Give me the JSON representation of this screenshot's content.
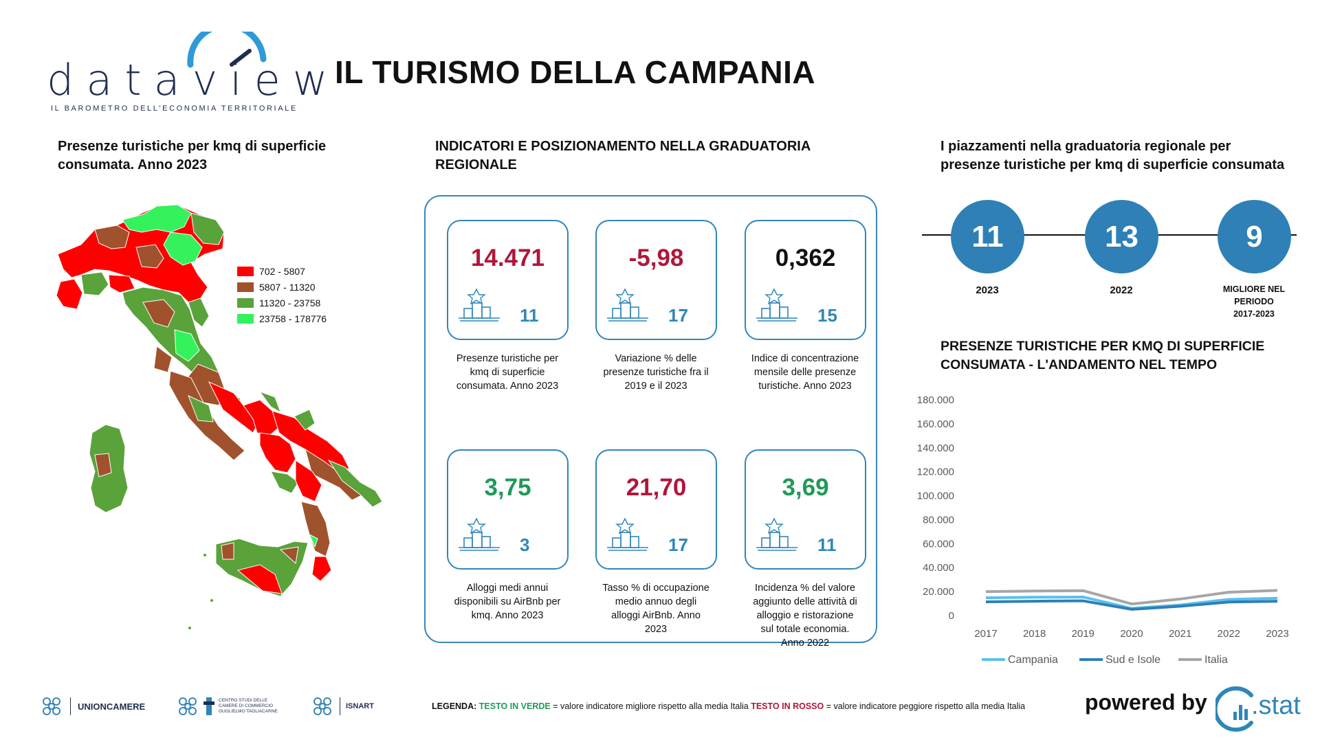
{
  "header": {
    "logo_word": "dataview",
    "logo_tagline": "IL BAROMETRO DELL'ECONOMIA TERRITORIALE",
    "title": "IL TURISMO DELLA CAMPANIA"
  },
  "map_section": {
    "title_line1": "Presenze turistiche per kmq di superficie",
    "title_line2": "consumata. Anno 2023",
    "legend": [
      {
        "label": "702 - 5807",
        "color": "#ff0000"
      },
      {
        "label": "5807 - 11320",
        "color": "#a0522d"
      },
      {
        "label": "11320 - 23758",
        "color": "#5aa23a"
      },
      {
        "label": "23758 - 178776",
        "color": "#33f25c"
      }
    ]
  },
  "indicators": {
    "title_line1": "INDICATORI E POSIZIONAMENTO NELLA GRADUATORIA",
    "title_line2": "REGIONALE",
    "cards": [
      {
        "value": "14.471",
        "rank": "11",
        "tone": "red",
        "desc": [
          "Presenze turistiche per",
          "kmq di superficie",
          "consumata. Anno 2023"
        ]
      },
      {
        "value": "-5,98",
        "rank": "17",
        "tone": "red",
        "desc": [
          "Variazione % delle",
          "presenze turistiche fra il",
          "2019 e il 2023"
        ]
      },
      {
        "value": "0,362",
        "rank": "15",
        "tone": "black",
        "desc": [
          "Indice di concentrazione",
          "mensile delle presenze",
          "turistiche. Anno 2023"
        ]
      },
      {
        "value": "3,75",
        "rank": "3",
        "tone": "green",
        "desc": [
          "Alloggi medi annui",
          "disponibili su AirBnb per",
          "kmq. Anno 2023"
        ]
      },
      {
        "value": "21,70",
        "rank": "17",
        "tone": "red",
        "desc": [
          "Tasso % di occupazione",
          "medio annuo degli",
          "alloggi AirBnb. Anno",
          "2023"
        ]
      },
      {
        "value": "3,69",
        "rank": "11",
        "tone": "green",
        "desc": [
          "Incidenza % del valore",
          "aggiunto delle attività di",
          "alloggio e ristorazione",
          "sul totale economia.",
          "Anno 2022"
        ]
      }
    ]
  },
  "ranking": {
    "title_line1": "I piazzamenti nella graduatoria regionale per",
    "title_line2": "presenze turistiche per kmq di superficie consumata",
    "items": [
      {
        "value": "11",
        "label": "2023"
      },
      {
        "value": "13",
        "label": "2022"
      },
      {
        "value": "9",
        "label_lines": [
          "MIGLIORE NEL",
          "PERIODO",
          "2017-2023"
        ]
      }
    ]
  },
  "trend": {
    "title_line1": "PRESENZE TURISTICHE PER KMQ DI SUPERFICIE",
    "title_line2": "CONSUMATA - L'ANDAMENTO NEL TEMPO"
  },
  "chart_data": {
    "type": "line",
    "x": [
      "2017",
      "2018",
      "2019",
      "2020",
      "2021",
      "2022",
      "2023"
    ],
    "ylim": [
      0,
      180000
    ],
    "yticks": [
      "0",
      "20.000",
      "40.000",
      "60.000",
      "80.000",
      "100.000",
      "120.000",
      "140.000",
      "160.000",
      "180.000"
    ],
    "tick_values": [
      0,
      20000,
      40000,
      60000,
      80000,
      100000,
      120000,
      140000,
      160000,
      180000
    ],
    "legend_position": "bottom",
    "grid": false,
    "series": [
      {
        "name": "Campania",
        "color": "#5bc0eb",
        "values": [
          14800,
          15300,
          15500,
          6000,
          8800,
          13500,
          14471
        ]
      },
      {
        "name": "Sud e Isole",
        "color": "#2f7fb8",
        "values": [
          11500,
          12000,
          12300,
          5200,
          7800,
          11300,
          12000
        ]
      },
      {
        "name": "Italia",
        "color": "#a6a6a6",
        "values": [
          20000,
          20500,
          20800,
          9700,
          13800,
          19500,
          21000
        ]
      }
    ]
  },
  "footer": {
    "logos": [
      "UNIONCAMERE",
      "CENTRO STUDI DELLE CAMERE DI COMMERCIO GUGLIELMO TAGLIACARNE",
      "ISNART"
    ],
    "legend_label": "LEGENDA:",
    "legend_green": "TESTO IN VERDE",
    "legend_green_desc": " = valore indicatore migliore rispetto alla media Italia ",
    "legend_red": "TESTO IN ROSSO",
    "legend_red_desc": " = valore indicatore peggiore rispetto alla media Italia",
    "powered_by": "powered by",
    "stat_logo": ".stat"
  }
}
